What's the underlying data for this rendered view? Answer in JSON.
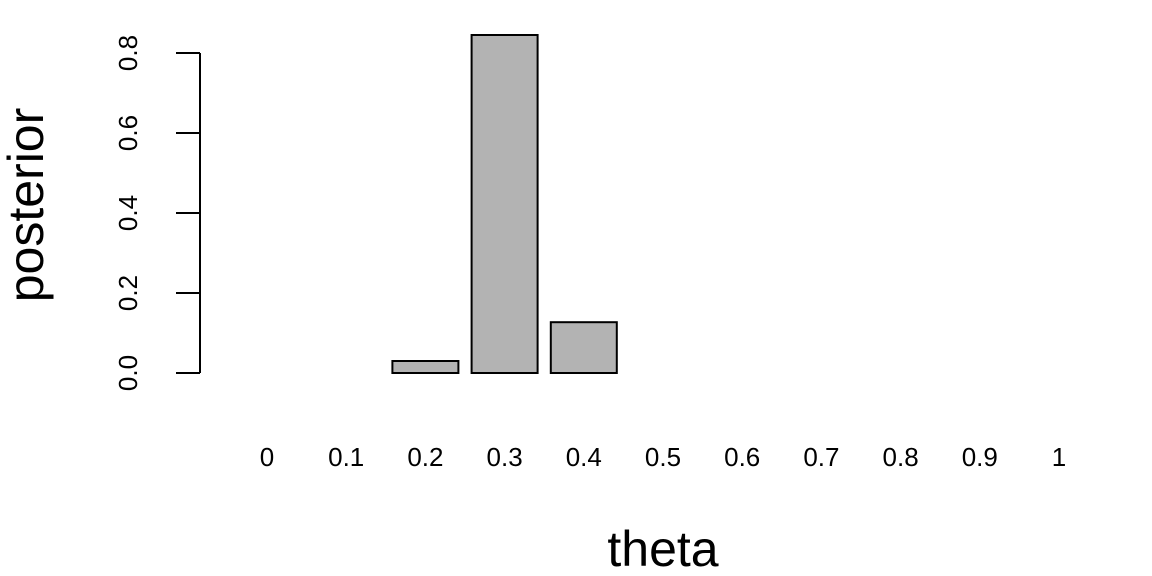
{
  "chart_data": {
    "type": "bar",
    "categories": [
      "0",
      "0.1",
      "0.2",
      "0.3",
      "0.4",
      "0.5",
      "0.6",
      "0.7",
      "0.8",
      "0.9",
      "1"
    ],
    "values": [
      0,
      0,
      0.03,
      0.845,
      0.127,
      0,
      0,
      0,
      0,
      0,
      0
    ],
    "xlabel": "theta",
    "ylabel": "posterior",
    "ylim": [
      0,
      0.8
    ],
    "yticks": [
      0,
      0.2,
      0.4,
      0.6,
      0.8
    ],
    "ytick_labels": [
      "0.0",
      "0.2",
      "0.4",
      "0.6",
      "0.8"
    ],
    "grid": false,
    "colors": {
      "bar_fill": "#b3b3b3",
      "bar_stroke": "#000000"
    }
  }
}
